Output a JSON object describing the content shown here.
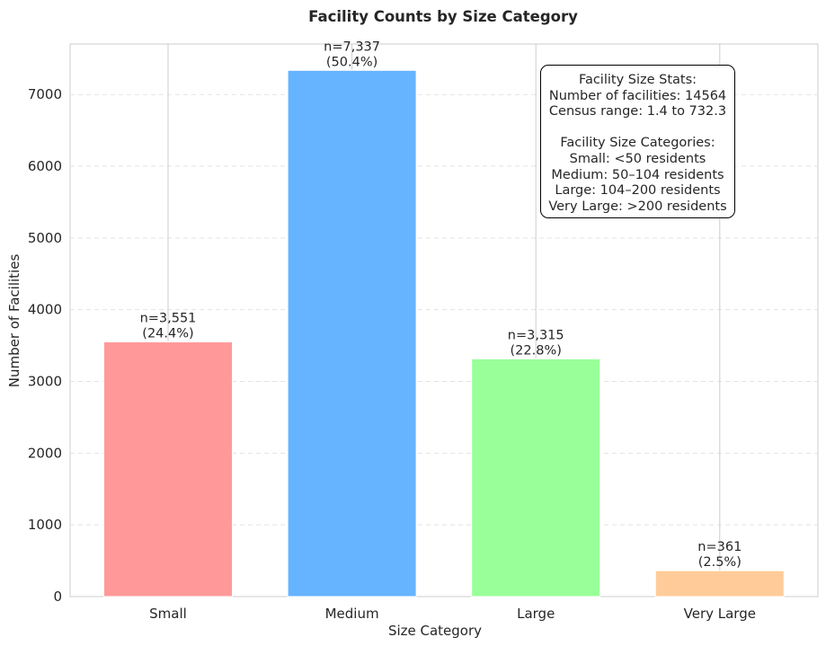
{
  "chart_data": {
    "type": "bar",
    "title": "Facility Counts by Size Category",
    "xlabel": "Size Category",
    "ylabel": "Number of Facilities",
    "categories": [
      "Small",
      "Medium",
      "Large",
      "Very Large"
    ],
    "values": [
      3551,
      7337,
      3315,
      361
    ],
    "data_labels": [
      {
        "count": "n=3,551",
        "percent": "(24.4%)"
      },
      {
        "count": "n=7,337",
        "percent": "(50.4%)"
      },
      {
        "count": "n=3,315",
        "percent": "(22.8%)"
      },
      {
        "count": "n=361",
        "percent": "(2.5%)"
      }
    ],
    "colors": [
      "#ff9999",
      "#66b3ff",
      "#99ff99",
      "#ffcc99"
    ],
    "ylim": [
      0,
      7704
    ],
    "yticks": [
      0,
      1000,
      2000,
      3000,
      4000,
      5000,
      6000,
      7000
    ],
    "grid": {
      "vertical": true,
      "horizontal": "dashed"
    },
    "legend": "none"
  },
  "stats_box": {
    "line1": "Facility Size Stats:",
    "line2": "Number of facilities: 14564",
    "line3": "Census range: 1.4 to 732.3",
    "line4": "Facility Size Categories:",
    "line5": "Small: <50 residents",
    "line6": "Medium: 50–104 residents",
    "line7": "Large: 104–200 residents",
    "line8": "Very Large: >200 residents"
  }
}
